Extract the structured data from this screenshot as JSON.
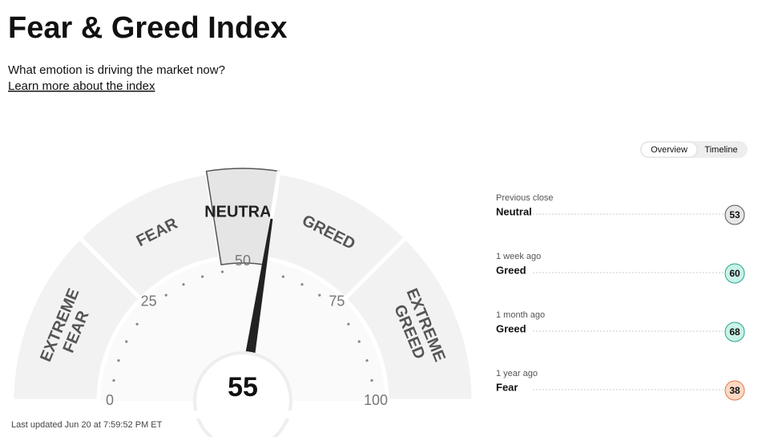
{
  "header": {
    "title": "Fear & Greed Index",
    "subtitle": "What emotion is driving the market now?",
    "link": "Learn more about the index"
  },
  "tabs": [
    "Overview",
    "Timeline"
  ],
  "gauge": {
    "value": 55,
    "range": [
      0,
      100
    ],
    "ticks": [
      0,
      25,
      50,
      75,
      100
    ],
    "segments": [
      {
        "label": "EXTREME FEAR",
        "range": [
          0,
          25
        ]
      },
      {
        "label": "FEAR",
        "range": [
          25,
          45
        ]
      },
      {
        "label": "NEUTRAL",
        "range": [
          45,
          55
        ]
      },
      {
        "label": "GREED",
        "range": [
          55,
          75
        ]
      },
      {
        "label": "EXTREME GREED",
        "range": [
          75,
          100
        ]
      }
    ]
  },
  "history": [
    {
      "label": "Previous close",
      "rating": "Neutral",
      "value": 53,
      "color": "#e6e6e6",
      "stroke": "#555555"
    },
    {
      "label": "1 week ago",
      "rating": "Greed",
      "value": 60,
      "color": "#c9f2e9",
      "stroke": "#27a58b"
    },
    {
      "label": "1 month ago",
      "rating": "Greed",
      "value": 68,
      "color": "#c9f2e9",
      "stroke": "#27a58b"
    },
    {
      "label": "1 year ago",
      "rating": "Fear",
      "value": 38,
      "color": "#fbd9c4",
      "stroke": "#e07a4a"
    }
  ],
  "footer": "Last updated Jun 20 at 7:59:52 PM ET"
}
